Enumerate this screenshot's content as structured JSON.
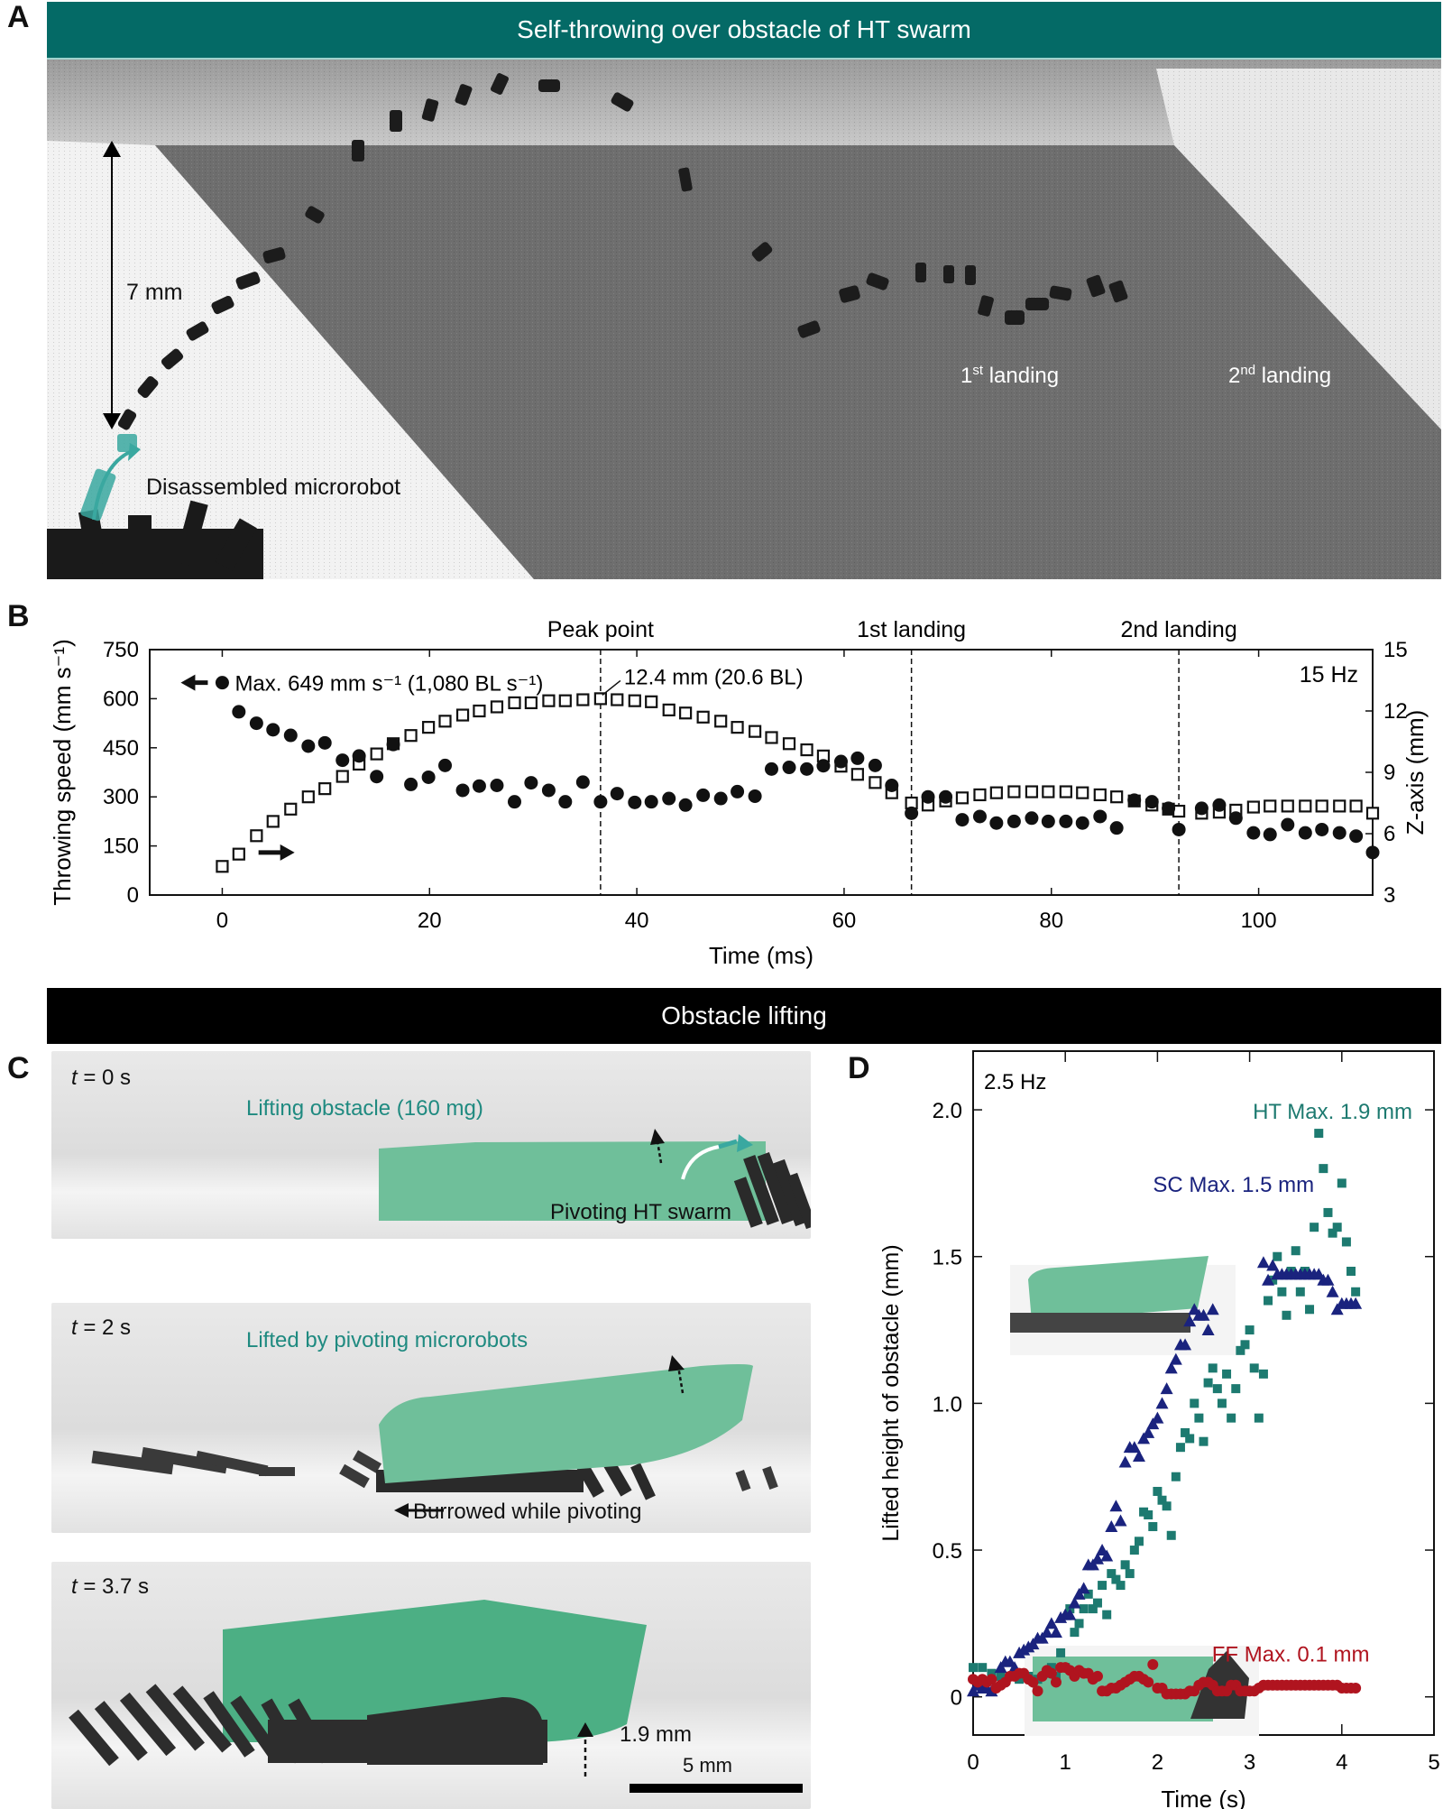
{
  "panel_a": {
    "letter": "A",
    "banner_title": "Self-throwing over obstacle of HT swarm",
    "height_label": "7 mm",
    "disassembled_label": "Disassembled microrobot",
    "landing1_label_num": "1",
    "landing1_label_sup": "st",
    "landing1_label_text": " landing",
    "landing2_label_num": "2",
    "landing2_label_sup": "nd",
    "landing2_label_text": " landing"
  },
  "panel_c": {
    "letter": "C",
    "banner_title": "Obstacle lifting",
    "frames": [
      {
        "time_var": "t",
        "time_text": " = 0 s",
        "teal_label": "Lifting obstacle (160 mg)",
        "dark_label": "Pivoting HT swarm"
      },
      {
        "time_var": "t",
        "time_text": " = 2 s",
        "teal_label": "Lifted by pivoting microrobots",
        "dark_label": "Burrowed while pivoting"
      },
      {
        "time_var": "t",
        "time_text": " = 3.7 s",
        "height_label": "1.9 mm",
        "scale_bar_label": "5 mm"
      }
    ]
  },
  "colors": {
    "teal_banner": "#046a66",
    "teal_text": "#1f8a80",
    "ht_series": "#1d7a70",
    "sc_series": "#1a237e",
    "ff_series": "#b0141f",
    "obstacle_green": "#6fbf9a"
  },
  "chart_data": [
    {
      "panel": "B",
      "type": "scatter",
      "title": "",
      "xlabel": "Time (ms)",
      "ylabel": "Throwing speed (mm s⁻¹)",
      "y2label": "Z-axis (mm)",
      "xlim": [
        -7,
        111
      ],
      "ylim": [
        0,
        750
      ],
      "y2lim": [
        3,
        15
      ],
      "xticks": [
        0,
        20,
        40,
        60,
        80,
        100
      ],
      "yticks": [
        0,
        150,
        300,
        450,
        600,
        750
      ],
      "y2ticks": [
        3,
        6,
        9,
        12,
        15
      ],
      "grid": false,
      "frequency_label": "15 Hz",
      "annotations": {
        "max_speed_label": "Max. 649 mm s⁻¹ (1,080 BL s⁻¹)",
        "peak_height_label": "12.4 mm (20.6 BL)"
      },
      "vlines": [
        {
          "x": 36.5,
          "label": "Peak point"
        },
        {
          "x": 66.5,
          "label": "1st landing"
        },
        {
          "x": 92.3,
          "label": "2nd landing"
        }
      ],
      "series": [
        {
          "name": "Throwing speed",
          "axis": "left",
          "marker": "filled-circle",
          "x": [
            0,
            1.6,
            3.3,
            4.9,
            6.6,
            8.3,
            9.9,
            11.6,
            13.2,
            14.9,
            16.5,
            18.2,
            19.9,
            21.5,
            23.2,
            24.8,
            26.5,
            28.2,
            29.8,
            31.5,
            33.1,
            34.8,
            36.5,
            38.1,
            39.8,
            41.4,
            43.1,
            44.7,
            46.4,
            48.1,
            49.7,
            51.4,
            53,
            54.7,
            56.4,
            58,
            59.7,
            61.3,
            63,
            64.6,
            66.5,
            68.1,
            69.8,
            71.4,
            73.1,
            74.7,
            76.4,
            78.1,
            79.7,
            81.4,
            83,
            84.7,
            86.3,
            88,
            89.7,
            91.3,
            92.3,
            94.5,
            96.2,
            97.8,
            99.5,
            101.1,
            102.8,
            104.5,
            106.1,
            107.8,
            109.4,
            111
          ],
          "y": [
            649,
            560,
            525,
            505,
            488,
            455,
            465,
            412,
            425,
            362,
            460,
            338,
            360,
            396,
            320,
            333,
            335,
            285,
            343,
            320,
            285,
            345,
            285,
            310,
            283,
            285,
            295,
            275,
            305,
            295,
            316,
            302,
            385,
            390,
            385,
            395,
            408,
            418,
            396,
            335,
            250,
            300,
            300,
            230,
            240,
            220,
            225,
            235,
            225,
            225,
            220,
            240,
            205,
            290,
            285,
            265,
            200,
            265,
            275,
            235,
            190,
            185,
            215,
            190,
            200,
            190,
            180,
            130
          ]
        },
        {
          "name": "Z-axis position",
          "axis": "right",
          "marker": "open-square",
          "x": [
            0,
            1.6,
            3.3,
            4.9,
            6.6,
            8.3,
            9.9,
            11.6,
            13.2,
            14.9,
            16.5,
            18.2,
            19.9,
            21.5,
            23.2,
            24.8,
            26.5,
            28.2,
            29.8,
            31.5,
            33.1,
            34.8,
            36.5,
            38.1,
            39.8,
            41.4,
            43.1,
            44.7,
            46.4,
            48.1,
            49.7,
            51.4,
            53,
            54.7,
            56.4,
            58,
            59.7,
            61.3,
            63,
            64.6,
            66.5,
            68.1,
            69.8,
            71.4,
            73.1,
            74.7,
            76.4,
            78.1,
            79.7,
            81.4,
            83,
            84.7,
            86.3,
            88,
            89.7,
            91.3,
            92.3,
            94.5,
            96.2,
            97.8,
            99.5,
            101.1,
            102.8,
            104.5,
            106.1,
            107.8,
            109.4,
            111
          ],
          "y": [
            4.4,
            5.0,
            5.9,
            6.6,
            7.2,
            7.8,
            8.2,
            8.8,
            9.4,
            9.9,
            10.4,
            10.8,
            11.2,
            11.5,
            11.8,
            12.0,
            12.2,
            12.4,
            12.4,
            12.5,
            12.5,
            12.55,
            12.6,
            12.55,
            12.5,
            12.45,
            12.05,
            11.9,
            11.7,
            11.5,
            11.2,
            11.0,
            10.7,
            10.4,
            10.1,
            9.8,
            9.3,
            8.9,
            8.5,
            8.0,
            7.5,
            7.4,
            7.6,
            7.75,
            7.9,
            8.0,
            8.05,
            8.05,
            8.05,
            8.05,
            8.0,
            7.9,
            7.8,
            7.6,
            7.4,
            7.2,
            7.1,
            7.0,
            7.05,
            7.15,
            7.3,
            7.35,
            7.35,
            7.35,
            7.35,
            7.35,
            7.35,
            7.0
          ]
        }
      ]
    },
    {
      "panel": "D",
      "type": "scatter",
      "title": "",
      "xlabel": "Time (s)",
      "ylabel": "Lifted height of obstacle (mm)",
      "xlim": [
        0,
        5
      ],
      "ylim": [
        -0.13,
        2.2
      ],
      "xticks": [
        0,
        1,
        2,
        3,
        4,
        5
      ],
      "yticks": [
        0,
        0.5,
        1.0,
        1.5,
        2.0
      ],
      "ytick_labels": [
        "0",
        "0.5",
        "1.0",
        "1.5",
        "2.0"
      ],
      "grid": false,
      "frequency_label": "2.5 Hz",
      "series": [
        {
          "name": "HT",
          "label": "HT Max. 1.9 mm",
          "marker": "filled-square",
          "color": "#1d7a70",
          "x": [
            0,
            0.1,
            0.2,
            0.3,
            0.4,
            0.5,
            0.6,
            0.7,
            0.8,
            0.85,
            0.9,
            0.95,
            1.0,
            1.05,
            1.1,
            1.15,
            1.2,
            1.25,
            1.3,
            1.35,
            1.4,
            1.45,
            1.5,
            1.55,
            1.6,
            1.65,
            1.7,
            1.75,
            1.8,
            1.85,
            1.9,
            1.95,
            2.0,
            2.05,
            2.1,
            2.15,
            2.2,
            2.25,
            2.3,
            2.35,
            2.4,
            2.45,
            2.5,
            2.55,
            2.6,
            2.65,
            2.7,
            2.75,
            2.8,
            2.85,
            2.9,
            2.95,
            3.0,
            3.05,
            3.1,
            3.15,
            3.2,
            3.25,
            3.3,
            3.35,
            3.4,
            3.45,
            3.5,
            3.55,
            3.6,
            3.65,
            3.7,
            3.75,
            3.8,
            3.85,
            3.9,
            3.95,
            4.0,
            4.05,
            4.1,
            4.15
          ],
          "y": [
            0.1,
            0.1,
            0.08,
            0.07,
            0.07,
            0.06,
            0.07,
            0.06,
            0.08,
            0.1,
            0.07,
            0.15,
            0.1,
            0.3,
            0.22,
            0.25,
            0.3,
            0.35,
            0.3,
            0.32,
            0.38,
            0.28,
            0.42,
            0.4,
            0.38,
            0.45,
            0.42,
            0.5,
            0.53,
            0.63,
            0.62,
            0.58,
            0.7,
            0.67,
            0.65,
            0.55,
            0.75,
            0.85,
            0.9,
            0.88,
            1.0,
            0.95,
            0.87,
            1.07,
            1.12,
            1.05,
            1.0,
            1.1,
            0.95,
            1.05,
            1.18,
            1.2,
            1.25,
            1.12,
            0.95,
            1.1,
            1.35,
            1.42,
            1.5,
            1.38,
            1.3,
            1.45,
            1.52,
            1.38,
            1.45,
            1.32,
            1.6,
            1.92,
            1.8,
            1.65,
            1.58,
            1.6,
            1.75,
            1.55,
            1.45,
            1.38
          ]
        },
        {
          "name": "SC",
          "label": "SC Max. 1.5 mm",
          "marker": "filled-triangle",
          "color": "#1a237e",
          "x": [
            0,
            0.05,
            0.1,
            0.15,
            0.2,
            0.3,
            0.35,
            0.4,
            0.45,
            0.5,
            0.55,
            0.6,
            0.65,
            0.7,
            0.75,
            0.8,
            0.85,
            0.9,
            0.95,
            1.0,
            1.05,
            1.1,
            1.15,
            1.2,
            1.25,
            1.3,
            1.35,
            1.4,
            1.45,
            1.5,
            1.55,
            1.6,
            1.65,
            1.7,
            1.75,
            1.8,
            1.85,
            1.9,
            1.95,
            2.0,
            2.05,
            2.1,
            2.15,
            2.2,
            2.25,
            2.3,
            2.35,
            2.4,
            2.45,
            2.5,
            2.55,
            2.6,
            3.15,
            3.2,
            3.25,
            3.3,
            3.35,
            3.4,
            3.45,
            3.5,
            3.55,
            3.6,
            3.65,
            3.7,
            3.75,
            3.8,
            3.85,
            3.9,
            3.95,
            4.0,
            4.05,
            4.1,
            4.15
          ],
          "y": [
            0.02,
            0.04,
            0.03,
            0.03,
            0.02,
            0.1,
            0.12,
            0.12,
            0.1,
            0.15,
            0.16,
            0.17,
            0.18,
            0.2,
            0.2,
            0.22,
            0.25,
            0.22,
            0.27,
            0.28,
            0.28,
            0.32,
            0.35,
            0.37,
            0.45,
            0.45,
            0.47,
            0.5,
            0.48,
            0.58,
            0.65,
            0.6,
            0.8,
            0.85,
            0.85,
            0.82,
            0.88,
            0.9,
            0.93,
            0.95,
            1.0,
            1.05,
            1.12,
            1.15,
            1.2,
            1.2,
            1.28,
            1.32,
            1.3,
            1.3,
            1.25,
            1.32,
            1.48,
            1.42,
            1.47,
            1.44,
            1.44,
            1.44,
            1.44,
            1.44,
            1.44,
            1.44,
            1.44,
            1.44,
            1.44,
            1.42,
            1.42,
            1.38,
            1.32,
            1.34,
            1.34,
            1.34,
            1.34
          ]
        },
        {
          "name": "FF",
          "label": "FF Max. 0.1 mm",
          "marker": "filled-circle",
          "color": "#b0141f",
          "x": [
            0,
            0.05,
            0.1,
            0.15,
            0.2,
            0.25,
            0.3,
            0.35,
            0.4,
            0.45,
            0.5,
            0.55,
            0.6,
            0.65,
            0.7,
            0.75,
            0.8,
            0.85,
            0.9,
            0.95,
            1.0,
            1.05,
            1.1,
            1.15,
            1.2,
            1.25,
            1.3,
            1.35,
            1.4,
            1.45,
            1.5,
            1.55,
            1.6,
            1.65,
            1.7,
            1.75,
            1.8,
            1.85,
            1.9,
            1.95,
            2.0,
            2.05,
            2.1,
            2.15,
            2.2,
            2.25,
            2.3,
            2.35,
            2.4,
            2.45,
            2.5,
            2.55,
            2.6,
            2.65,
            2.7,
            2.75,
            2.8,
            2.85,
            2.9,
            2.95,
            3.0,
            3.05,
            3.1,
            3.15,
            3.2,
            3.25,
            3.3,
            3.35,
            3.4,
            3.45,
            3.5,
            3.55,
            3.6,
            3.65,
            3.7,
            3.75,
            3.8,
            3.85,
            3.9,
            3.95,
            4.0,
            4.05,
            4.1,
            4.15
          ],
          "y": [
            0.06,
            0.05,
            0.06,
            0.05,
            0.06,
            0.03,
            0.04,
            0.05,
            0.07,
            0.07,
            0.08,
            0.08,
            0.06,
            0.05,
            0.02,
            0.07,
            0.09,
            0.08,
            0.05,
            0.1,
            0.1,
            0.09,
            0.07,
            0.09,
            0.08,
            0.08,
            0.06,
            0.07,
            0.02,
            0.02,
            0.03,
            0.03,
            0.04,
            0.05,
            0.06,
            0.07,
            0.07,
            0.06,
            0.05,
            0.11,
            0.03,
            0.03,
            0.01,
            0.01,
            0.01,
            0.01,
            0.01,
            0.02,
            0.02,
            0.04,
            0.05,
            0.05,
            0.04,
            0.02,
            0.02,
            0.02,
            0.04,
            0.04,
            0.02,
            0.02,
            0.02,
            0.02,
            0.03,
            0.04,
            0.04,
            0.04,
            0.04,
            0.04,
            0.04,
            0.04,
            0.04,
            0.04,
            0.04,
            0.04,
            0.04,
            0.04,
            0.04,
            0.04,
            0.04,
            0.04,
            0.03,
            0.03,
            0.03,
            0.03
          ]
        }
      ]
    }
  ]
}
